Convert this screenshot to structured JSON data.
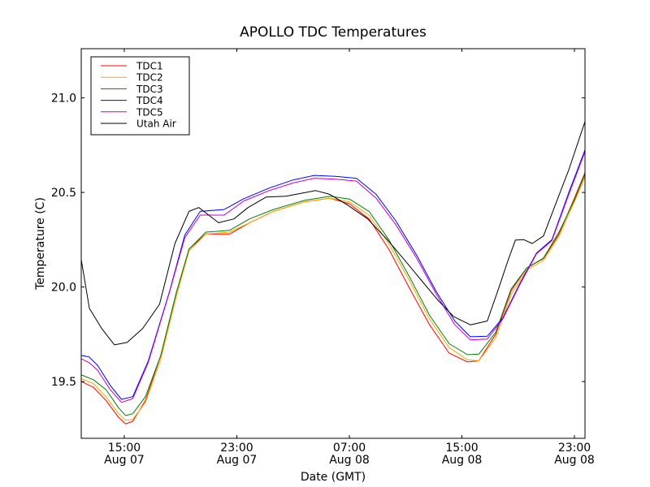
{
  "chart_data": {
    "type": "line",
    "title": "APOLLO TDC Temperatures",
    "xlabel": "Date (GMT)",
    "ylabel": "Temperature (C)",
    "x_units": "hours since 2000-Aug-07 00:00 GMT (date labels as shown)",
    "xlim": [
      11.94,
      47.75
    ],
    "ylim": [
      19.2,
      21.26
    ],
    "grid": false,
    "legend_position": "top-left",
    "xticks": [
      {
        "value": 15,
        "label_time": "15:00",
        "label_date": "Aug 07"
      },
      {
        "value": 23,
        "label_time": "23:00",
        "label_date": "Aug 07"
      },
      {
        "value": 31,
        "label_time": "07:00",
        "label_date": "Aug 08"
      },
      {
        "value": 39,
        "label_time": "15:00",
        "label_date": "Aug 08"
      },
      {
        "value": 47,
        "label_time": "23:00",
        "label_date": "Aug 08"
      }
    ],
    "yticks": [
      {
        "value": 19.5,
        "label": "19.5"
      },
      {
        "value": 20.0,
        "label": "20.0"
      },
      {
        "value": 20.5,
        "label": "20.5"
      },
      {
        "value": 21.0,
        "label": "21.0"
      }
    ],
    "series": [
      {
        "name": "TDC1",
        "color": "#ff0000",
        "x": [
          11.94,
          12.8,
          13.7,
          14.6,
          15.1,
          15.6,
          16.5,
          17.6,
          18.7,
          19.6,
          20.8,
          22.5,
          23.9,
          25.6,
          27.8,
          29.6,
          31.0,
          32.4,
          33.8,
          35.3,
          36.7,
          38.1,
          39.4,
          40.2,
          41.4,
          42.5,
          43.6,
          44.8,
          45.9,
          47.0,
          47.75
        ],
        "y": [
          19.5,
          19.47,
          19.4,
          19.31,
          19.277,
          19.29,
          19.4,
          19.64,
          19.97,
          20.2,
          20.28,
          20.28,
          20.34,
          20.4,
          20.45,
          20.47,
          20.44,
          20.36,
          20.2,
          19.99,
          19.8,
          19.65,
          19.604,
          19.61,
          19.75,
          19.98,
          20.1,
          20.15,
          20.28,
          20.47,
          20.605
        ]
      },
      {
        "name": "TDC2",
        "color": "#ffa500",
        "x": [
          11.94,
          12.8,
          13.7,
          14.6,
          15.1,
          15.6,
          16.5,
          17.6,
          18.7,
          19.6,
          20.8,
          22.5,
          23.9,
          25.6,
          27.8,
          29.6,
          31.0,
          32.4,
          33.8,
          35.3,
          36.7,
          38.1,
          39.4,
          40.2,
          41.4,
          42.5,
          43.6,
          44.8,
          45.9,
          47.0,
          47.75
        ],
        "y": [
          19.515,
          19.49,
          19.42,
          19.33,
          19.295,
          19.3,
          19.39,
          19.62,
          19.95,
          20.19,
          20.28,
          20.29,
          20.34,
          20.4,
          20.45,
          20.47,
          20.45,
          20.38,
          20.23,
          20.03,
          19.83,
          19.68,
          19.615,
          19.61,
          19.73,
          19.96,
          20.09,
          20.14,
          20.27,
          20.45,
          20.58
        ]
      },
      {
        "name": "TDC3",
        "color": "#008000",
        "x": [
          11.94,
          12.8,
          13.7,
          14.6,
          15.1,
          15.6,
          16.5,
          17.6,
          18.7,
          19.6,
          20.8,
          22.5,
          23.9,
          25.6,
          27.8,
          29.6,
          31.0,
          32.4,
          33.8,
          35.3,
          36.7,
          38.1,
          39.4,
          40.2,
          41.4,
          42.5,
          43.6,
          44.8,
          45.9,
          47.0,
          47.75
        ],
        "y": [
          19.535,
          19.51,
          19.457,
          19.36,
          19.32,
          19.33,
          19.42,
          19.64,
          19.97,
          20.2,
          20.29,
          20.3,
          20.36,
          20.41,
          20.458,
          20.48,
          20.465,
          20.4,
          20.25,
          20.05,
          19.85,
          19.7,
          19.642,
          19.645,
          19.76,
          19.99,
          20.1,
          20.153,
          20.29,
          20.46,
          20.596
        ]
      },
      {
        "name": "TDC4",
        "color": "#0000ff",
        "x": [
          11.94,
          12.5,
          13.1,
          14.0,
          14.8,
          15.6,
          16.7,
          18.2,
          19.3,
          20.4,
          22.1,
          23.5,
          25.3,
          27.0,
          28.5,
          30.0,
          31.5,
          32.9,
          34.3,
          35.8,
          37.2,
          38.5,
          39.6,
          40.8,
          41.9,
          43.1,
          44.3,
          45.4,
          46.6,
          47.75
        ],
        "y": [
          19.638,
          19.63,
          19.586,
          19.48,
          19.406,
          19.42,
          19.608,
          19.973,
          20.274,
          20.4,
          20.41,
          20.467,
          20.523,
          20.566,
          20.59,
          20.585,
          20.575,
          20.49,
          20.35,
          20.166,
          19.973,
          19.82,
          19.737,
          19.74,
          19.835,
          20.016,
          20.18,
          20.25,
          20.5,
          20.725
        ]
      },
      {
        "name": "TDC5",
        "color": "#bf00bf",
        "x": [
          11.94,
          12.5,
          13.1,
          14.0,
          14.8,
          15.6,
          16.7,
          18.2,
          19.3,
          20.4,
          22.1,
          23.5,
          25.3,
          27.0,
          28.5,
          30.0,
          31.5,
          32.9,
          34.3,
          35.8,
          37.2,
          38.5,
          39.6,
          40.8,
          41.9,
          43.1,
          44.3,
          45.4,
          46.6,
          47.75
        ],
        "y": [
          19.62,
          19.6,
          19.56,
          19.457,
          19.39,
          19.41,
          19.6,
          19.97,
          20.26,
          20.38,
          20.38,
          20.455,
          20.51,
          20.55,
          20.575,
          20.57,
          20.56,
          20.47,
          20.33,
          20.15,
          19.96,
          19.8,
          19.72,
          19.725,
          19.83,
          20.01,
          20.175,
          20.245,
          20.49,
          20.715
        ]
      },
      {
        "name": "Utah Air",
        "color": "#000000",
        "x": [
          11.94,
          12.52,
          13.4,
          14.3,
          15.2,
          16.3,
          17.5,
          18.6,
          19.6,
          20.3,
          21.0,
          21.7,
          22.8,
          23.8,
          25.1,
          26.5,
          27.9,
          28.6,
          29.6,
          30.8,
          32.3,
          33.7,
          34.9,
          36.1,
          37.3,
          38.4,
          39.6,
          40.8,
          41.6,
          42.3,
          42.8,
          43.4,
          44.0,
          44.8,
          45.7,
          46.6,
          47.75
        ],
        "y": [
          20.145,
          19.887,
          19.78,
          19.694,
          19.707,
          19.78,
          19.908,
          20.23,
          20.4,
          20.42,
          20.38,
          20.34,
          20.36,
          20.42,
          20.476,
          20.48,
          20.5,
          20.51,
          20.49,
          20.437,
          20.36,
          20.25,
          20.145,
          20.037,
          19.93,
          19.844,
          19.8,
          19.82,
          19.99,
          20.145,
          20.248,
          20.25,
          20.23,
          20.27,
          20.446,
          20.62,
          20.875
        ]
      }
    ]
  }
}
